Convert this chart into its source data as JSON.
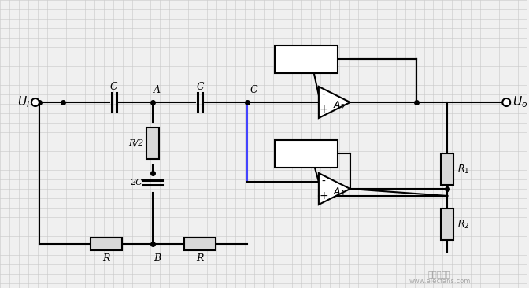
{
  "bg_color": "#f0f0f0",
  "grid_color": "#c8c8c8",
  "line_color": "#000000",
  "blue_line_color": "#4444ff",
  "component_fill": "#d8d8d8",
  "title": "",
  "labels": {
    "Ui": "U_i",
    "Uo": "U_o",
    "A": "A",
    "B": "B",
    "C_label": "C",
    "C2_label": "C",
    "C_node": "C",
    "R_label": "R",
    "R2_label": "R",
    "R_half": "R/2",
    "two_C": "2C",
    "R1_label": "R_1",
    "R2_comp": "R_2",
    "A1_label": "A_1",
    "A2_label": "A_2"
  }
}
